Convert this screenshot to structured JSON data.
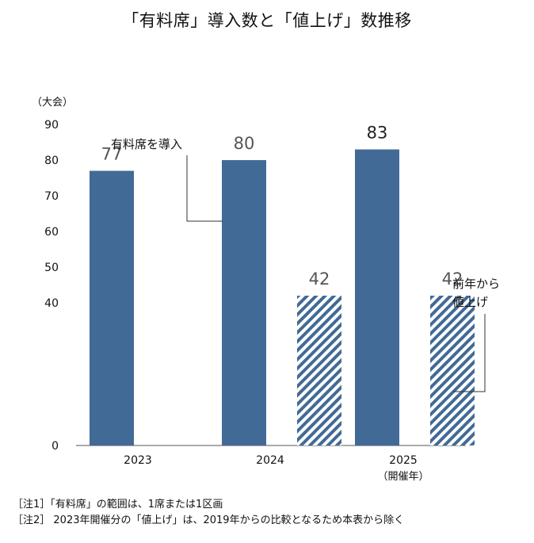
{
  "chart_data": {
    "type": "bar",
    "title": "「有料席」導入数と「値上げ」数推移",
    "unit_label": "（大会）",
    "categories": [
      "2023",
      "2024",
      "2025"
    ],
    "category_sublabels": [
      "",
      "",
      "（開催年）"
    ],
    "series": [
      {
        "name": "有料席を導入",
        "values": [
          77,
          80,
          83
        ],
        "color": "#426a96",
        "pattern": "solid"
      },
      {
        "name": "前年から値上げ",
        "values": [
          null,
          42,
          42
        ],
        "color": "#426a96",
        "pattern": "diagonal-stripes"
      }
    ],
    "ylim": [
      0,
      90
    ],
    "yticks": [
      0,
      40,
      50,
      60,
      70,
      80,
      90
    ],
    "value_label_color": "#555555",
    "grid": false,
    "annotations": [
      {
        "text": "有料席を導入",
        "target": "series-0-bar-2024"
      },
      {
        "text_lines": [
          "前年から",
          "値上げ"
        ],
        "target": "series-1-bar-2025"
      }
    ]
  },
  "notes": [
    "［注1］「有料席」の範囲は、1席または1区画",
    "［注2］ 2023年開催分の「値上げ」は、2019年からの比較となるため本表から除く"
  ]
}
